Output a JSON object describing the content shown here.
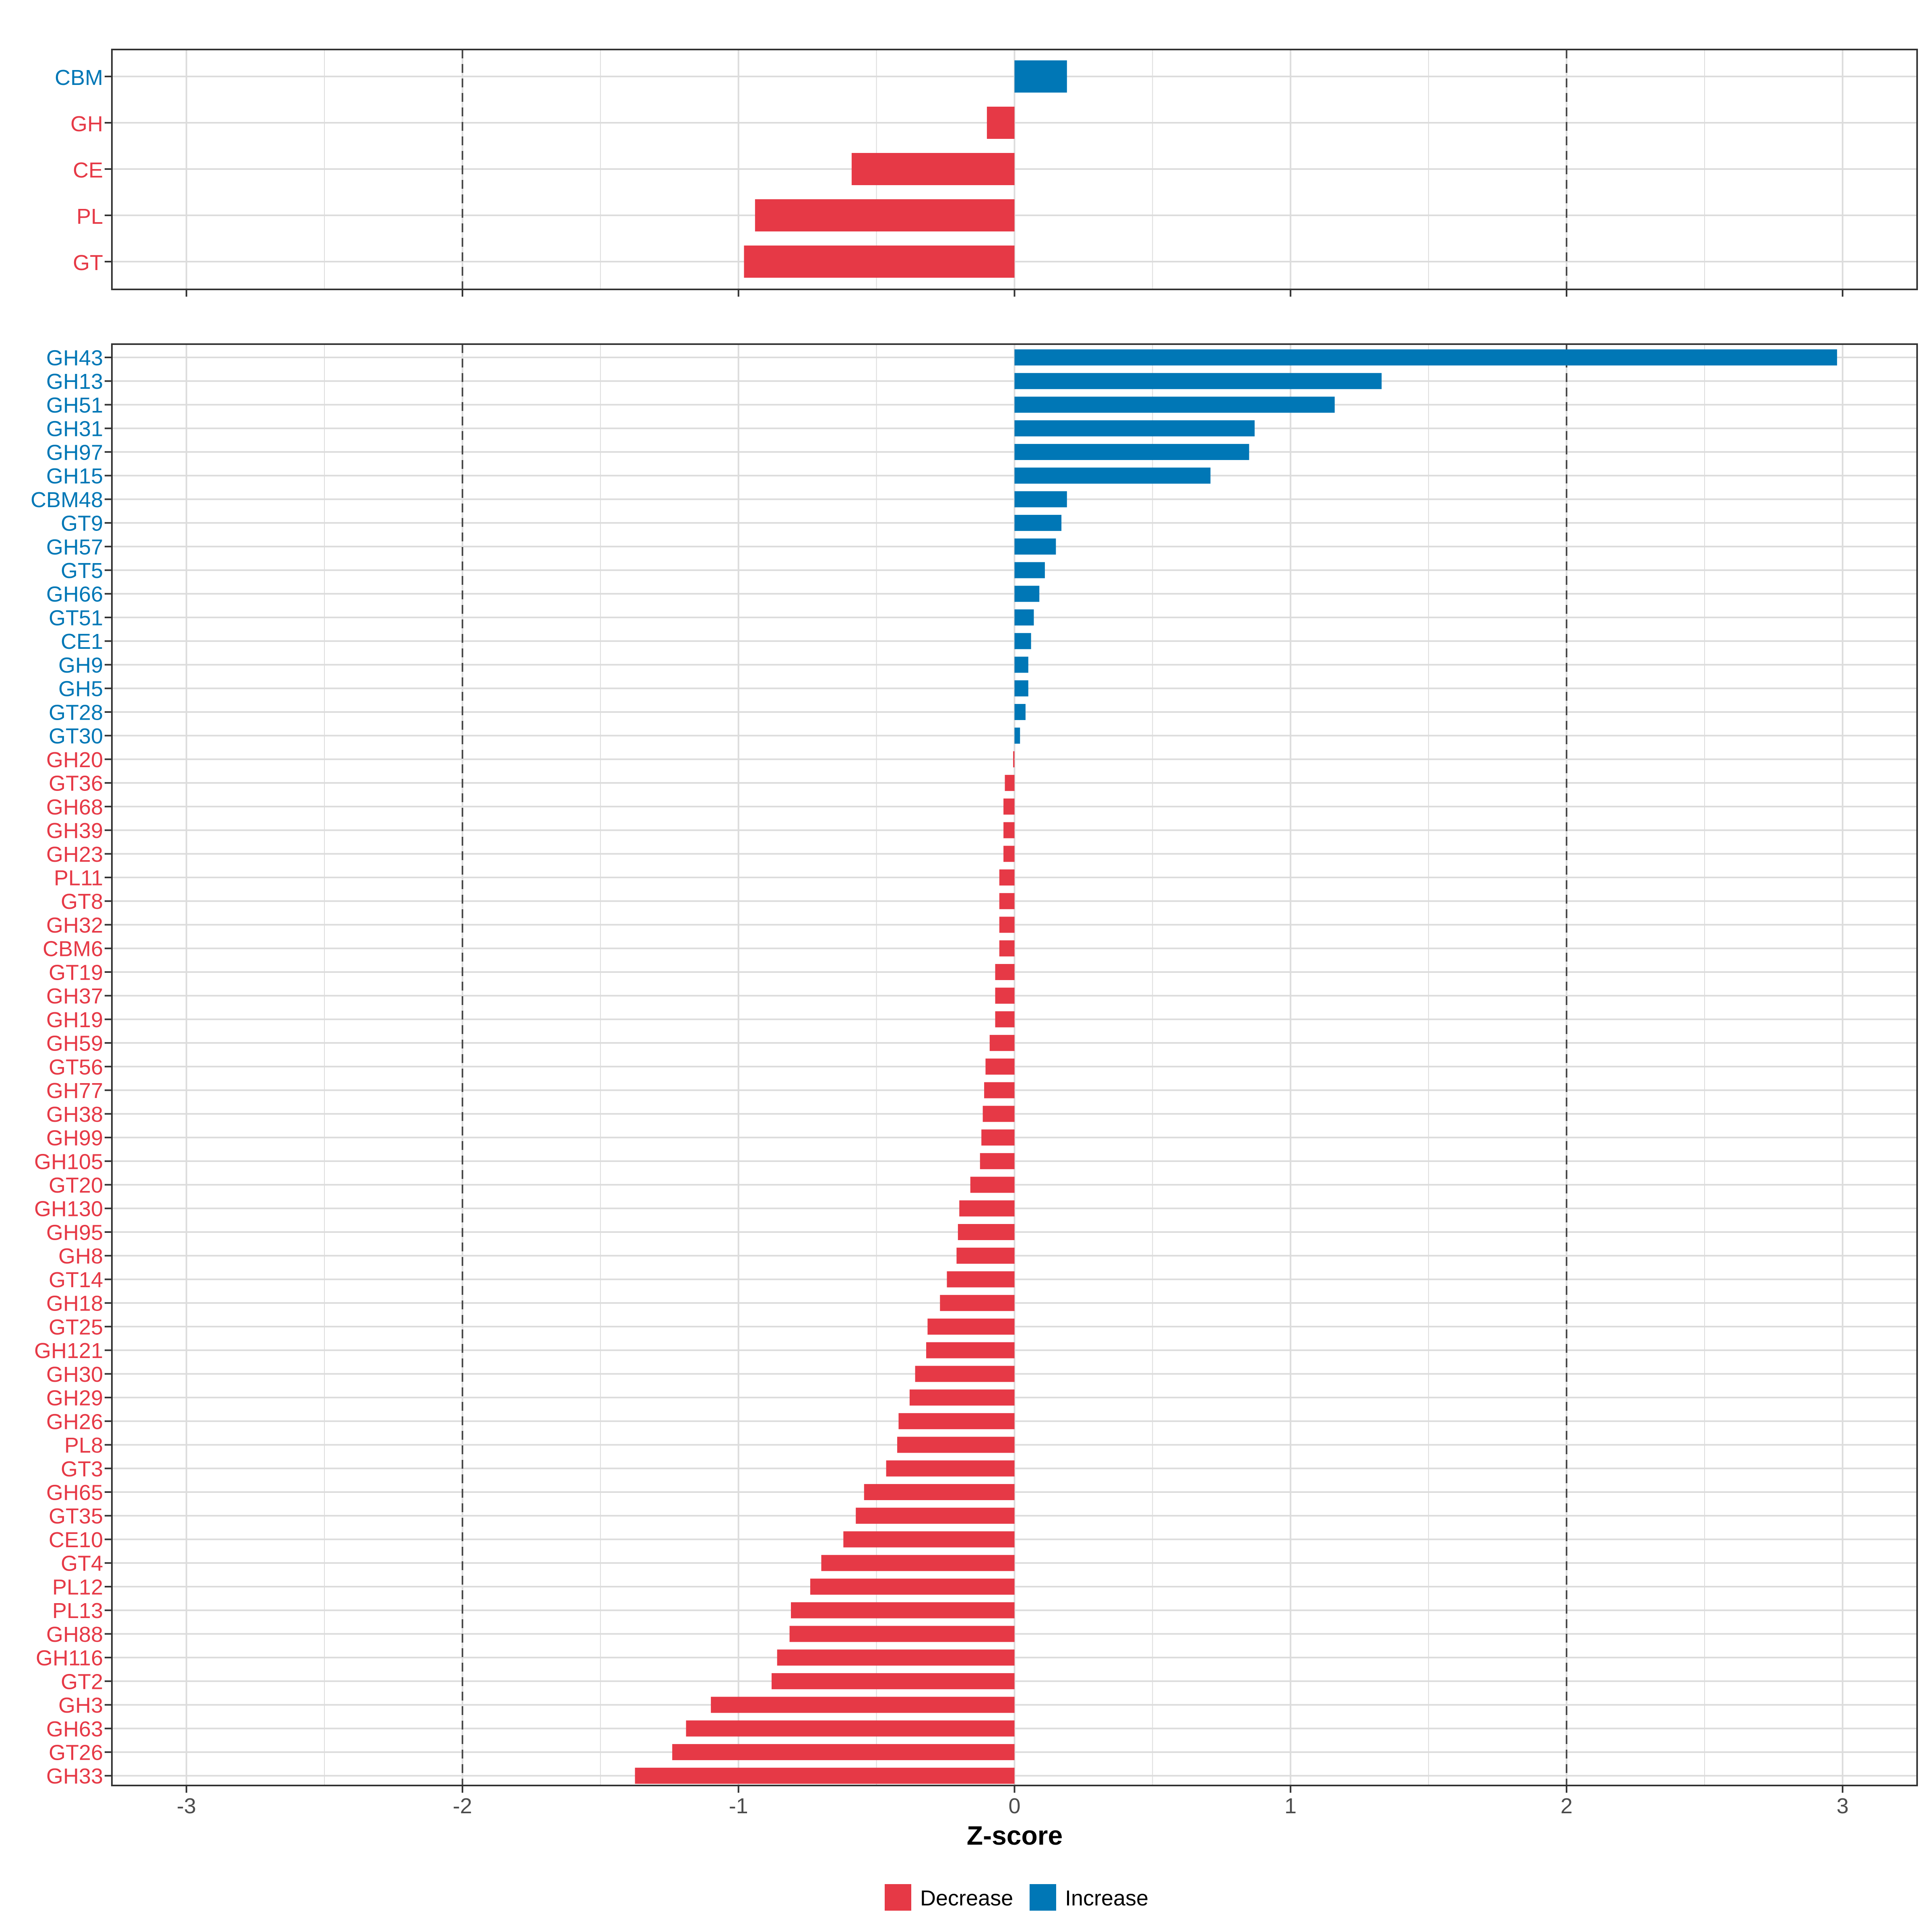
{
  "colors": {
    "decrease": "#E63946",
    "increase": "#0077B6"
  },
  "chart_data": [
    {
      "type": "bar",
      "orientation": "horizontal",
      "panel": "top",
      "categories": [
        "CBM",
        "GH",
        "CE",
        "PL",
        "GT"
      ],
      "values": [
        0.19,
        -0.1,
        -0.59,
        -0.94,
        -0.98
      ],
      "xlim": [
        -3.27,
        3.27
      ],
      "ticks": [
        -3,
        -2,
        -1,
        0,
        1,
        2,
        3
      ],
      "reference_lines": [
        -2,
        2
      ],
      "grid": true
    },
    {
      "type": "bar",
      "orientation": "horizontal",
      "panel": "bottom",
      "categories": [
        "GH43",
        "GH13",
        "GH51",
        "GH31",
        "GH97",
        "GH15",
        "CBM48",
        "GT9",
        "GH57",
        "GT5",
        "GH66",
        "GT51",
        "CE1",
        "GH9",
        "GH5",
        "GT28",
        "GT30",
        "GH20",
        "GT36",
        "GH68",
        "GH39",
        "GH23",
        "PL11",
        "GT8",
        "GH32",
        "CBM6",
        "GT19",
        "GH37",
        "GH19",
        "GH59",
        "GT56",
        "GH77",
        "GH38",
        "GH99",
        "GH105",
        "GT20",
        "GH130",
        "GH95",
        "GH8",
        "GT14",
        "GH18",
        "GT25",
        "GH121",
        "GH30",
        "GH29",
        "GH26",
        "PL8",
        "GT3",
        "GH65",
        "GT35",
        "CE10",
        "GT4",
        "PL12",
        "PL13",
        "GH88",
        "GH116",
        "GT2",
        "GH3",
        "GH63",
        "GT26",
        "GH33"
      ],
      "values": [
        2.98,
        1.33,
        1.16,
        0.87,
        0.85,
        0.71,
        0.19,
        0.17,
        0.15,
        0.11,
        0.09,
        0.07,
        0.06,
        0.05,
        0.05,
        0.04,
        0.02,
        -0.005,
        -0.035,
        -0.04,
        -0.04,
        -0.04,
        -0.055,
        -0.055,
        -0.055,
        -0.055,
        -0.07,
        -0.07,
        -0.07,
        -0.09,
        -0.105,
        -0.11,
        -0.115,
        -0.12,
        -0.125,
        -0.16,
        -0.2,
        -0.205,
        -0.21,
        -0.245,
        -0.27,
        -0.315,
        -0.32,
        -0.36,
        -0.38,
        -0.42,
        -0.425,
        -0.465,
        -0.545,
        -0.575,
        -0.62,
        -0.7,
        -0.74,
        -0.81,
        -0.815,
        -0.86,
        -0.88,
        -1.1,
        -1.19,
        -1.24,
        -1.375
      ],
      "xlim": [
        -3.27,
        3.27
      ],
      "ticks": [
        -3,
        -2,
        -1,
        0,
        1,
        2,
        3
      ],
      "reference_lines": [
        -2,
        2
      ],
      "xlabel": "Z-score",
      "grid": true
    }
  ],
  "legend": {
    "position": "bottom",
    "items": [
      {
        "label": "Decrease",
        "key": "decrease"
      },
      {
        "label": "Increase",
        "key": "increase"
      }
    ]
  }
}
